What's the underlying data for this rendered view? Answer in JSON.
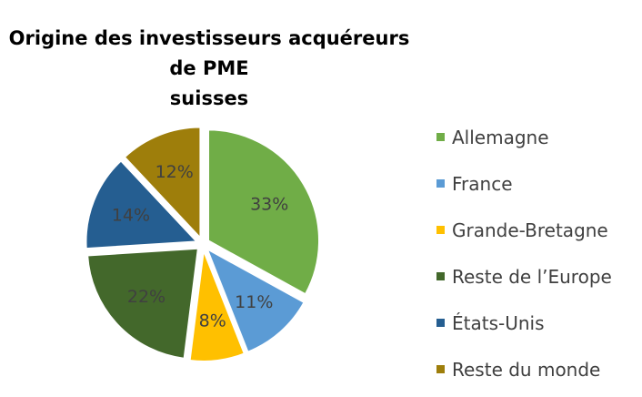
{
  "chart_data": {
    "type": "pie",
    "title_lines": [
      "Origine des investisseurs acquéreurs de PME",
      "suisses"
    ],
    "slices": [
      {
        "label": "Allemagne",
        "value": 33,
        "display": "33%",
        "color": "#70ad47"
      },
      {
        "label": "France",
        "value": 11,
        "display": "11%",
        "color": "#5b9bd5"
      },
      {
        "label": "Grande-Bretagne",
        "value": 8,
        "display": "8%",
        "color": "#ffc000"
      },
      {
        "label": "Reste de l’Europe",
        "value": 22,
        "display": "22%",
        "color": "#43682b"
      },
      {
        "label": "États-Unis",
        "value": 14,
        "display": "14%",
        "color": "#255e91"
      },
      {
        "label": "Reste du monde",
        "value": 12,
        "display": "12%",
        "color": "#9e7e0b"
      }
    ],
    "legend_position": "right",
    "label_color": "#404040"
  }
}
